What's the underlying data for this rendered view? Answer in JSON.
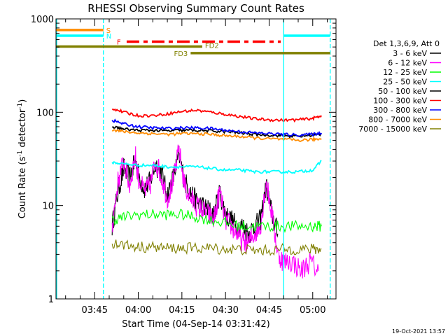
{
  "chart_data": {
    "type": "line",
    "title": "RHESSI Observing Summary Count Rates",
    "xlabel": "Start Time (04-Sep-14 03:31:42)",
    "ylabel_main": "Count Rate (s",
    "ylabel_sup1": "-1",
    "ylabel_mid": " detector",
    "ylabel_sup2": "-1",
    "ylabel_end": ")",
    "yscale": "log",
    "xlim": [
      "03:31:42",
      "05:08:00"
    ],
    "ylim": [
      1,
      1000
    ],
    "x_ticks": [
      "03:45",
      "04:00",
      "04:15",
      "04:30",
      "04:45",
      "05:00"
    ],
    "y_ticks": [
      "1",
      "10",
      "100",
      "1000"
    ],
    "legend_header": "Det 1,3,6,9, Att 0",
    "series": [
      {
        "name": "3 - 6 keV",
        "color": "#000000",
        "x": [
          "03:51",
          "03:53",
          "03:55",
          "03:57",
          "03:59",
          "04:00",
          "04:02",
          "04:04",
          "04:06",
          "04:08",
          "04:10",
          "04:12",
          "04:14",
          "04:16",
          "04:18",
          "04:20",
          "04:22",
          "04:24",
          "04:26",
          "04:28",
          "04:30",
          "04:32",
          "04:34",
          "04:36",
          "04:38",
          "04:40",
          "04:42",
          "04:44",
          "04:46",
          "04:48"
        ],
        "y": [
          6,
          14,
          25,
          20,
          30,
          22,
          15,
          18,
          28,
          22,
          13,
          20,
          35,
          18,
          14,
          11,
          10,
          9,
          8,
          14,
          8,
          7,
          6,
          6,
          5,
          6,
          7,
          16,
          8,
          5
        ]
      },
      {
        "name": "6 - 12 keV",
        "color": "#ff00ff",
        "x": [
          "03:51",
          "03:53",
          "03:55",
          "03:57",
          "03:59",
          "04:00",
          "04:02",
          "04:04",
          "04:06",
          "04:08",
          "04:10",
          "04:12",
          "04:14",
          "04:16",
          "04:18",
          "04:20",
          "04:22",
          "04:24",
          "04:26",
          "04:28",
          "04:30",
          "04:32",
          "04:34",
          "04:36",
          "04:38",
          "04:40",
          "04:42",
          "04:44",
          "04:46",
          "04:48",
          "04:50",
          "04:53",
          "04:56",
          "04:59",
          "05:02"
        ],
        "y": [
          6,
          18,
          30,
          16,
          35,
          20,
          14,
          16,
          30,
          20,
          12,
          18,
          40,
          16,
          12,
          10,
          9,
          8,
          7,
          14,
          7,
          6,
          5,
          4,
          4,
          5,
          6,
          18,
          8,
          3,
          2.5,
          2.5,
          2,
          2.5,
          2
        ]
      },
      {
        "name": "12 - 25 keV",
        "color": "#00ff00",
        "x": [
          "03:51",
          "03:55",
          "04:00",
          "04:05",
          "04:10",
          "04:15",
          "04:20",
          "04:25",
          "04:30",
          "04:35",
          "04:40",
          "04:45",
          "04:50",
          "04:55",
          "05:00",
          "05:03"
        ],
        "y": [
          7,
          7.5,
          8,
          8,
          8,
          8,
          7.5,
          7,
          6.5,
          6,
          6,
          6,
          6,
          6,
          6,
          6
        ]
      },
      {
        "name": "25 - 50 keV",
        "color": "#00ffff",
        "x": [
          "03:51",
          "03:55",
          "04:00",
          "04:05",
          "04:10",
          "04:15",
          "04:20",
          "04:25",
          "04:30",
          "04:35",
          "04:40",
          "04:45",
          "04:50",
          "04:55",
          "05:00",
          "05:03"
        ],
        "y": [
          29,
          28,
          27,
          27,
          26,
          26,
          26,
          25,
          24,
          24,
          23,
          23,
          23,
          23,
          24,
          30
        ]
      },
      {
        "name": "50 - 100 keV",
        "color": "#000000",
        "x": [
          "03:51",
          "03:55",
          "04:00",
          "04:05",
          "04:10",
          "04:15",
          "04:20",
          "04:25",
          "04:30",
          "04:35",
          "04:40",
          "04:45",
          "04:50",
          "04:55",
          "05:00",
          "05:03"
        ],
        "y": [
          70,
          66,
          64,
          64,
          63,
          64,
          64,
          63,
          62,
          60,
          58,
          57,
          56,
          55,
          57,
          58
        ]
      },
      {
        "name": "100 - 300 keV",
        "color": "#ff0000",
        "x": [
          "03:51",
          "03:55",
          "04:00",
          "04:05",
          "04:10",
          "04:15",
          "04:20",
          "04:25",
          "04:30",
          "04:35",
          "04:40",
          "04:45",
          "04:50",
          "04:55",
          "05:00",
          "05:03"
        ],
        "y": [
          110,
          100,
          92,
          92,
          96,
          102,
          105,
          100,
          95,
          90,
          85,
          83,
          82,
          83,
          86,
          92
        ]
      },
      {
        "name": "300 - 800 keV",
        "color": "#0000ff",
        "x": [
          "03:51",
          "03:55",
          "04:00",
          "04:05",
          "04:10",
          "04:15",
          "04:20",
          "04:25",
          "04:30",
          "04:35",
          "04:40",
          "04:45",
          "04:50",
          "04:55",
          "05:00",
          "05:03"
        ],
        "y": [
          82,
          75,
          70,
          68,
          67,
          68,
          68,
          67,
          64,
          62,
          60,
          59,
          58,
          57,
          58,
          60
        ]
      },
      {
        "name": "800 - 7000 keV",
        "color": "#ff8c00",
        "x": [
          "03:51",
          "03:55",
          "04:00",
          "04:05",
          "04:10",
          "04:15",
          "04:20",
          "04:25",
          "04:30",
          "04:35",
          "04:40",
          "04:45",
          "04:50",
          "04:55",
          "05:00",
          "05:03"
        ],
        "y": [
          65,
          62,
          60,
          59,
          58,
          59,
          59,
          58,
          56,
          55,
          53,
          52,
          51,
          50,
          51,
          52
        ]
      },
      {
        "name": "7000 - 15000 keV",
        "color": "#808000",
        "x": [
          "03:51",
          "03:55",
          "04:00",
          "04:05",
          "04:10",
          "04:15",
          "04:20",
          "04:25",
          "04:30",
          "04:35",
          "04:40",
          "04:45",
          "04:50",
          "04:55",
          "05:00",
          "05:03"
        ],
        "y": [
          4,
          3.8,
          3.6,
          3.6,
          3.5,
          3.5,
          3.5,
          3.5,
          3.4,
          3.4,
          3.3,
          3.3,
          3.4,
          3.4,
          3.4,
          3.4
        ]
      }
    ],
    "flags": [
      {
        "label": "S",
        "color": "#ff8c00",
        "y": 760,
        "start": "03:31:42",
        "end": "03:48:00",
        "style": "solid"
      },
      {
        "label": "N",
        "color": "#00ffff",
        "y": 660,
        "start": "03:31:42",
        "end": "03:48:00",
        "style": "solid"
      },
      {
        "label": "N",
        "color": "#00ffff",
        "y": 660,
        "start": "04:50:00",
        "end": "05:06:00",
        "style": "solid"
      },
      {
        "label": "F",
        "color": "#ff0000",
        "y": 570,
        "start": "03:56:00",
        "end": "04:49:00",
        "style": "dashed"
      },
      {
        "label": "FD2",
        "color": "#808000",
        "y": 505,
        "start": "03:31:42",
        "end": "04:22:00",
        "style": "solid"
      },
      {
        "label": "FD3",
        "color": "#808000",
        "y": 430,
        "start": "04:18:00",
        "end": "05:06:00",
        "style": "solid"
      }
    ],
    "vlines": [
      {
        "time": "03:48:00",
        "color": "#00ffff",
        "style": "dashed"
      },
      {
        "time": "04:50:00",
        "color": "#00ffff",
        "style": "solid"
      },
      {
        "time": "05:06:00",
        "color": "#00ffff",
        "style": "dashed"
      }
    ],
    "footer_date": "19-Oct-2021 13:57"
  }
}
